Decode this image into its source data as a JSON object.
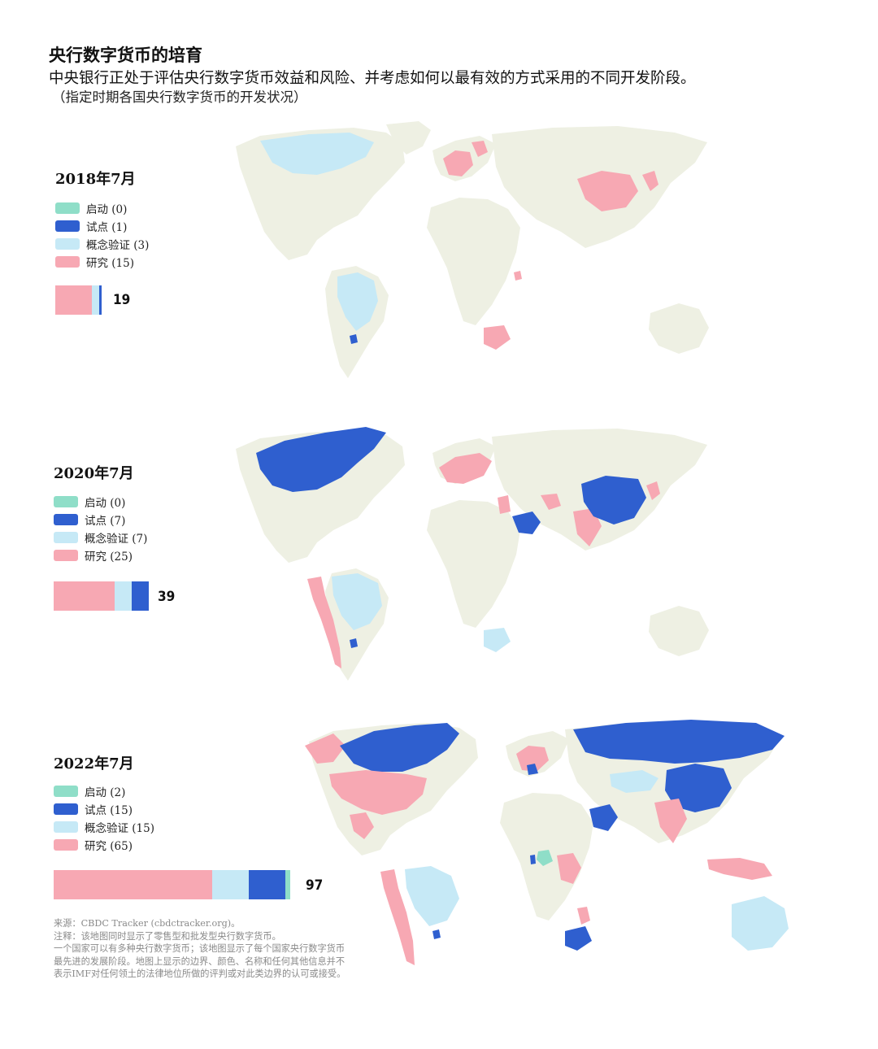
{
  "header": {
    "title": "央行数字货币的培育",
    "subtitle": "中央银行正处于评估央行数字货币效益和风险、并考虑如何以最有效的方式采用的不同开发阶段。",
    "note": "（指定时期各国央行数字货币的开发状况）"
  },
  "colors": {
    "launched": "#8fdec8",
    "pilot": "#2f5fcf",
    "proof_of_concept": "#c6e9f6",
    "research": "#f7a8b3",
    "land": "#eef0e3",
    "ocean": "#ffffff"
  },
  "panels": [
    {
      "year": "2018年7月",
      "legend": [
        {
          "key": "launched",
          "label": "启动 (0)"
        },
        {
          "key": "pilot",
          "label": "试点 (1)"
        },
        {
          "key": "proof_of_concept",
          "label": "概念验证 (3)"
        },
        {
          "key": "research",
          "label": "研究 (15)"
        }
      ],
      "counts": {
        "research": 15,
        "proof_of_concept": 3,
        "pilot": 1,
        "launched": 0
      },
      "total": "19"
    },
    {
      "year": "2020年7月",
      "legend": [
        {
          "key": "launched",
          "label": "启动 (0)"
        },
        {
          "key": "pilot",
          "label": "试点 (7)"
        },
        {
          "key": "proof_of_concept",
          "label": "概念验证 (7)"
        },
        {
          "key": "research",
          "label": "研究 (25)"
        }
      ],
      "counts": {
        "research": 25,
        "proof_of_concept": 7,
        "pilot": 7,
        "launched": 0
      },
      "total": "39"
    },
    {
      "year": "2022年7月",
      "legend": [
        {
          "key": "launched",
          "label": "启动 (2)"
        },
        {
          "key": "pilot",
          "label": "试点 (15)"
        },
        {
          "key": "proof_of_concept",
          "label": "概念验证 (15)"
        },
        {
          "key": "research",
          "label": "研究 (65)"
        }
      ],
      "counts": {
        "research": 65,
        "proof_of_concept": 15,
        "pilot": 15,
        "launched": 2
      },
      "total": "97"
    }
  ],
  "source": {
    "line1": "来源：CBDC Tracker (cbdctracker.org)。",
    "line2": "注释：该地图同时显示了零售型和批发型央行数字货币。",
    "line3": "一个国家可以有多种央行数字货币；该地图显示了每个国家央行数字货币最先进的发展阶段。地图上显示的边界、颜色、名称和任何其他信息并不表示IMF对任何领土的法律地位所做的评判或对此类边界的认可或接受。"
  }
}
